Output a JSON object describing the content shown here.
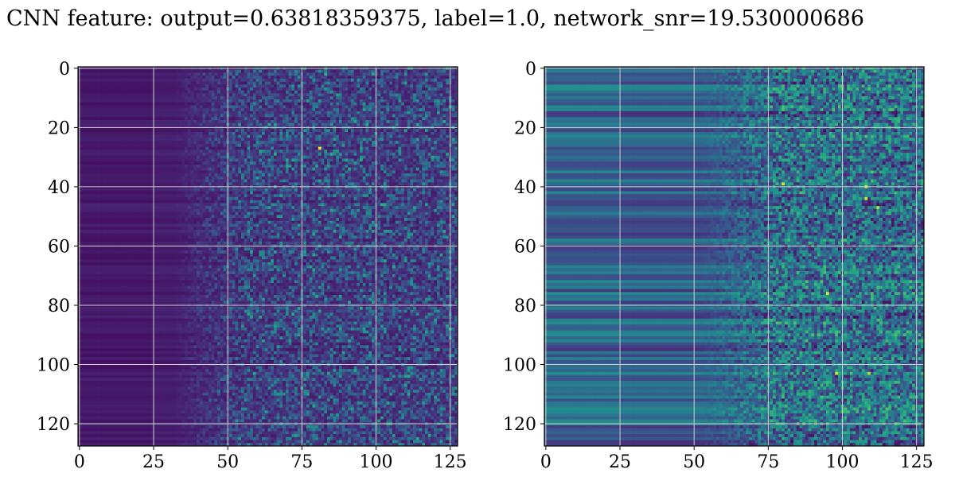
{
  "figure": {
    "title": "CNN feature: output=0.63818359375, label=1.0, network_snr=19.530000686"
  },
  "chart_data": [
    {
      "type": "heatmap",
      "title": "",
      "xlabel": "",
      "ylabel": "",
      "rows": 128,
      "cols": 128,
      "xlim": [
        0,
        128
      ],
      "ylim": [
        128,
        0
      ],
      "y_inverted": true,
      "grid": true,
      "colormap": "viridis",
      "xticks": [
        0,
        25,
        50,
        75,
        100,
        125
      ],
      "yticks": [
        0,
        20,
        40,
        60,
        80,
        100,
        120
      ],
      "noise_onset_col": 50,
      "background_level": 0.08,
      "hotspots": [
        {
          "x": 81,
          "y": 27,
          "level": 1.0
        },
        {
          "x": 79,
          "y": 63,
          "level": 0.6
        },
        {
          "x": 79,
          "y": 68,
          "level": 0.6
        },
        {
          "x": 83,
          "y": 2,
          "level": 0.65
        }
      ]
    },
    {
      "type": "heatmap",
      "title": "",
      "xlabel": "",
      "ylabel": "",
      "rows": 128,
      "cols": 128,
      "xlim": [
        0,
        128
      ],
      "ylim": [
        128,
        0
      ],
      "y_inverted": true,
      "grid": true,
      "colormap": "viridis",
      "xticks": [
        0,
        25,
        50,
        75,
        100,
        125
      ],
      "yticks": [
        0,
        20,
        40,
        60,
        80,
        100,
        120
      ],
      "noise_onset_col": 70,
      "background_level": 0.3,
      "hotspots": [
        {
          "x": 80,
          "y": 39,
          "level": 0.95
        },
        {
          "x": 108,
          "y": 40,
          "level": 0.95
        },
        {
          "x": 108,
          "y": 44,
          "level": 0.95
        },
        {
          "x": 112,
          "y": 47,
          "level": 0.9
        },
        {
          "x": 95,
          "y": 76,
          "level": 0.95
        },
        {
          "x": 98,
          "y": 103,
          "level": 0.95
        },
        {
          "x": 109,
          "y": 103,
          "level": 0.9
        }
      ]
    }
  ]
}
